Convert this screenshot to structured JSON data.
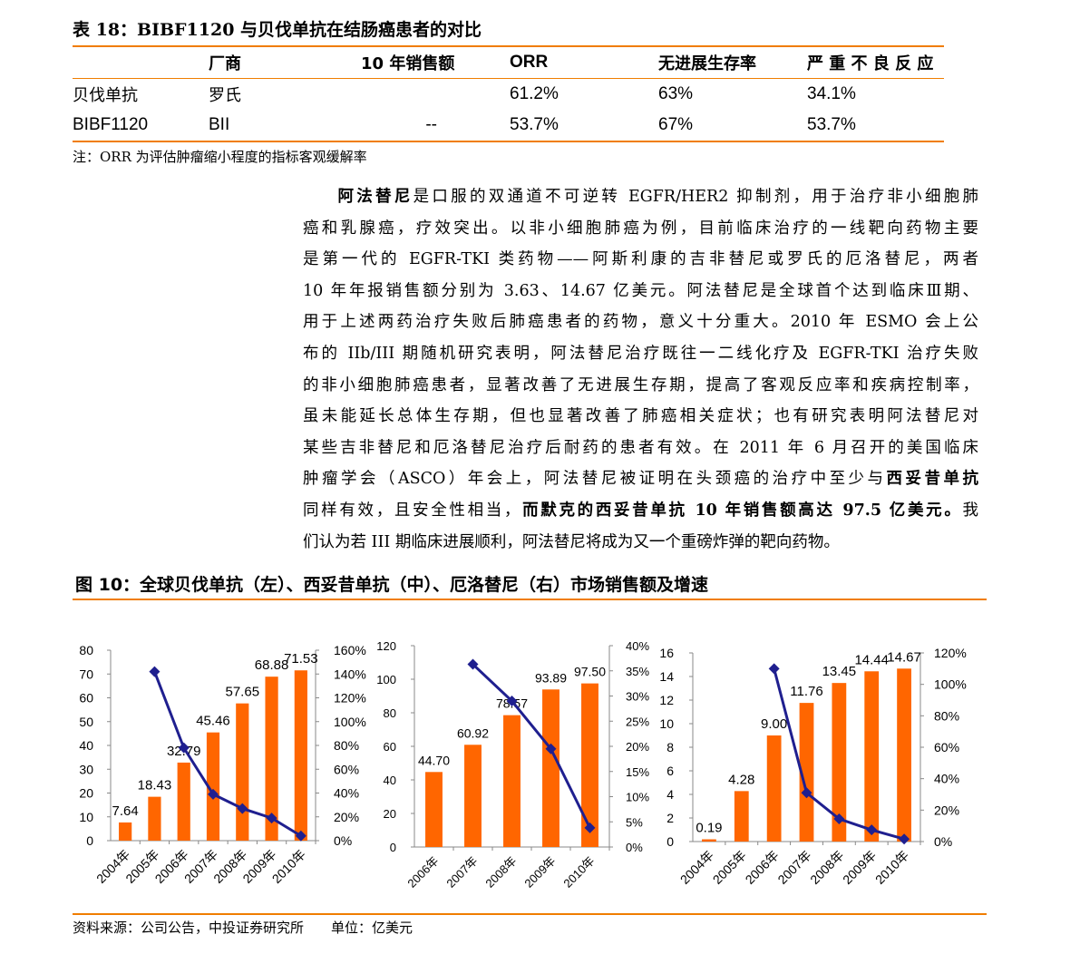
{
  "table": {
    "caption": "表 18：BIBF1120 与贝伐单抗在结肠癌患者的对比",
    "headers": [
      "",
      "厂商",
      "10 年销售额",
      "ORR",
      "无进展生存率",
      "严 重 不 良 反 应"
    ],
    "rows": [
      [
        "贝伐单抗",
        "罗氏",
        "",
        "61.2%",
        "63%",
        "34.1%"
      ],
      [
        "BIBF1120",
        "BII",
        "--",
        "53.7%",
        "67%",
        "53.7%"
      ]
    ],
    "note": "注：ORR 为评估肿瘤缩小程度的指标客观缓解率"
  },
  "paragraph": {
    "lines": [
      [
        {
          "t": "阿法替尼",
          "b": true
        },
        {
          "t": "是口服的双通道不可逆转 EGFR/HER2 抑制剂，用于治疗非小细胞肺"
        }
      ],
      [
        {
          "t": "癌和乳腺癌，疗效突出。以非小细胞肺癌为例，目前临床治疗的一线靶向药物主要"
        }
      ],
      [
        {
          "t": "是第一代的 EGFR-TKI 类药物——阿斯利康的吉非替尼或罗氏的厄洛替尼，两者"
        }
      ],
      [
        {
          "t": "10 年年报销售额分别为 3.63、14.67 亿美元。阿法替尼是全球首个达到临床Ⅲ期、"
        }
      ],
      [
        {
          "t": "用于上述两药治疗失败后肺癌患者的药物，意义十分重大。2010 年 ESMO 会上公"
        }
      ],
      [
        {
          "t": "布的 IIb/III 期随机研究表明，阿法替尼治疗既往一二线化疗及 EGFR-TKI 治疗失败"
        }
      ],
      [
        {
          "t": "的非小细胞肺癌患者，显著改善了无进展生存期，提高了客观反应率和疾病控制率，"
        }
      ],
      [
        {
          "t": "虽未能延长总体生存期，但也显著改善了肺癌相关症状；也有研究表明阿法替尼对"
        }
      ],
      [
        {
          "t": "某些吉非替尼和厄洛替尼治疗后耐药的患者有效。在 2011 年 6 月召开的美国临床"
        }
      ],
      [
        {
          "t": "肿瘤学会（ASCO）年会上，阿法替尼被证明在头颈癌的治疗中至少与"
        },
        {
          "t": "西妥昔单抗",
          "b": true
        }
      ],
      [
        {
          "t": "同样有效，且安全性相当，"
        },
        {
          "t": "而默克的西妥昔单抗 10 年销售额高达 97.5 亿美元。",
          "b": true
        },
        {
          "t": "我"
        }
      ],
      [
        {
          "t": "们认为若 III 期临床进展顺利，阿法替尼将成为又一个重磅炸弹的靶向药物。"
        }
      ]
    ]
  },
  "figure": {
    "caption": "图 10：全球贝伐单抗（左）、西妥昔单抗（中）、厄洛替尼（右）市场销售额及增速",
    "source": "资料来源：公司公告，中投证券研究所　　单位：亿美元"
  },
  "colors": {
    "bar": "#ff6600",
    "line": "#1f1f8f",
    "accent": "#f07d00"
  },
  "chart_data": [
    {
      "type": "bar+line",
      "categories": [
        "2004年",
        "2005年",
        "2006年",
        "2007年",
        "2008年",
        "2009年",
        "2010年"
      ],
      "bar_values": [
        7.64,
        18.43,
        32.79,
        45.46,
        57.65,
        68.88,
        71.53
      ],
      "bar_labels": [
        "7.64",
        "18.43",
        "32.79",
        "45.46",
        "57.65",
        "68.88",
        "71.53"
      ],
      "growth": [
        null,
        1.42,
        0.78,
        0.39,
        0.27,
        0.19,
        0.04
      ],
      "ylim": [
        0,
        80
      ],
      "yticks": [
        "0",
        "10",
        "20",
        "30",
        "40",
        "50",
        "60",
        "70",
        "80"
      ],
      "y2lim": [
        0,
        1.6
      ],
      "y2ticks": [
        "0%",
        "20%",
        "40%",
        "60%",
        "80%",
        "100%",
        "120%",
        "140%",
        "160%"
      ]
    },
    {
      "type": "bar+line",
      "categories": [
        "2006年",
        "2007年",
        "2008年",
        "2009年",
        "2010年"
      ],
      "bar_values": [
        44.7,
        60.92,
        78.57,
        93.89,
        97.5
      ],
      "bar_labels": [
        "44.70",
        "60.92",
        "78.57",
        "93.89",
        "97.50"
      ],
      "growth": [
        null,
        0.363,
        0.29,
        0.195,
        0.038
      ],
      "ylim": [
        0,
        120
      ],
      "yticks": [
        "0",
        "20",
        "40",
        "60",
        "80",
        "100",
        "120"
      ],
      "y2lim": [
        0,
        0.4
      ],
      "y2ticks": [
        "0%",
        "5%",
        "10%",
        "15%",
        "20%",
        "25%",
        "30%",
        "35%",
        "40%"
      ]
    },
    {
      "type": "bar+line",
      "categories": [
        "2004年",
        "2005年",
        "2006年",
        "2007年",
        "2008年",
        "2009年",
        "2010年"
      ],
      "bar_values": [
        0.19,
        4.28,
        9.0,
        11.76,
        13.45,
        14.44,
        14.67
      ],
      "bar_labels": [
        "0.19",
        "4.28",
        "9.00",
        "11.76",
        "13.45",
        "14.44",
        "14.67"
      ],
      "growth": [
        null,
        null,
        1.1,
        0.31,
        0.144,
        0.074,
        0.016
      ],
      "ylim": [
        0,
        16
      ],
      "yticks": [
        "0",
        "2",
        "4",
        "6",
        "8",
        "10",
        "12",
        "14",
        "16"
      ],
      "y2lim": [
        0,
        1.2
      ],
      "y2ticks": [
        "0%",
        "20%",
        "40%",
        "60%",
        "80%",
        "100%",
        "120%"
      ]
    }
  ]
}
